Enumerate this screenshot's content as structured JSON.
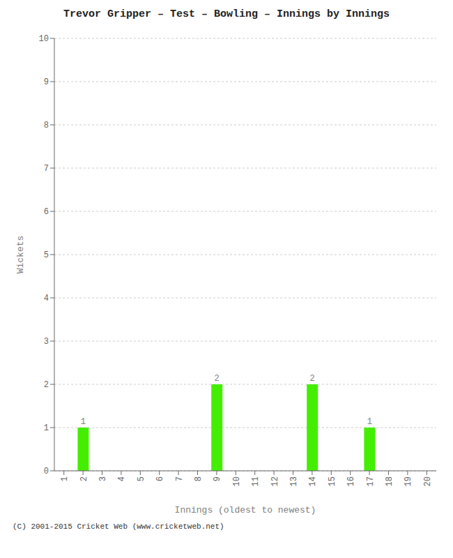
{
  "chart_data": {
    "type": "bar",
    "title": "Trevor Gripper – Test – Bowling – Innings by Innings",
    "x_label": "Innings (oldest to newest)",
    "y_label": "Wickets",
    "categories": [
      "1",
      "2",
      "3",
      "4",
      "5",
      "6",
      "7",
      "8",
      "9",
      "10",
      "11",
      "12",
      "13",
      "14",
      "15",
      "16",
      "17",
      "18",
      "19",
      "20"
    ],
    "values": [
      0,
      1,
      0,
      0,
      0,
      0,
      0,
      0,
      2,
      0,
      0,
      0,
      0,
      2,
      0,
      0,
      1,
      0,
      0,
      0
    ],
    "color": "#44ee00",
    "ylim": [
      0,
      10
    ],
    "yticks": [
      0,
      1,
      2,
      3,
      4,
      5,
      6,
      7,
      8,
      9,
      10
    ],
    "grid": true,
    "data_labels": true,
    "annotations": [
      "(C) 2001-2015 Cricket Web (www.cricketweb.net)"
    ]
  }
}
